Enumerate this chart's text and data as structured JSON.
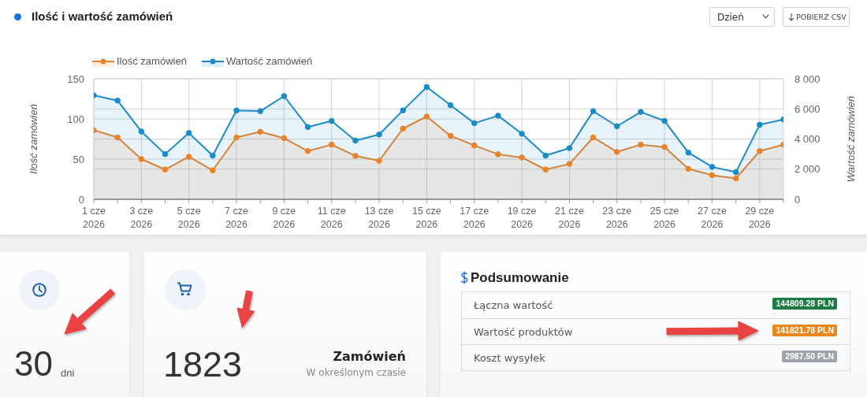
{
  "chart_data": [
    {
      "type": "area",
      "title": "Ilość i wartość zamówień",
      "ylabel": "Ilość zamówień",
      "y2label": "Wartość zamówień",
      "categories": [
        "1 cze 2026",
        null,
        "3 cze 2026",
        null,
        "5 cze 2026",
        null,
        "7 cze 2026",
        null,
        "9 cze 2026",
        null,
        "11 cze 2026",
        null,
        "13 cze 2026",
        null,
        "15 cze 2026",
        null,
        "17 cze 2026",
        null,
        "19 cze 2026",
        null,
        "21 cze 2026",
        null,
        "23 cze 2026",
        null,
        "25 cze 2026",
        null,
        "27 cze 2026",
        null,
        "29 cze 2026",
        null
      ],
      "series": [
        {
          "name": "Ilość zamówień",
          "color": "#e8832a",
          "values": [
            86,
            77,
            50,
            37,
            53,
            36,
            77,
            84,
            76,
            60,
            68,
            54,
            48,
            88,
            103,
            79,
            67,
            56,
            52,
            37,
            44,
            77,
            59,
            68,
            65,
            38,
            30,
            26,
            60,
            68
          ]
        },
        {
          "name": "Wartość zamówień",
          "color": "#1b8bc8",
          "axis": "y2",
          "values": [
            6900,
            6550,
            4500,
            3000,
            4400,
            2900,
            5900,
            5850,
            6850,
            4800,
            5200,
            3900,
            4300,
            5900,
            7450,
            6250,
            5050,
            5550,
            4350,
            2900,
            3400,
            5850,
            4850,
            5800,
            5200,
            3100,
            2150,
            1800,
            4950,
            5300
          ]
        }
      ],
      "ylim": [
        0,
        150
      ],
      "yticks": [
        0,
        50,
        100,
        150
      ],
      "y2lim": [
        0,
        8000
      ],
      "y2ticks": [
        0,
        {
          "value": 2000,
          "label": "2 000"
        },
        {
          "value": 4000,
          "label": "4 000"
        },
        {
          "value": 6000,
          "label": "6 000"
        },
        {
          "value": 8000,
          "label": "8 000"
        }
      ],
      "grid": true,
      "legend": "top left",
      "marker": "circle",
      "annotations": [
        "Dzień",
        "POBIERZ CSV"
      ]
    },
    {
      "type": "other",
      "annotations": [
        "30",
        "dni"
      ]
    },
    {
      "type": "other",
      "annotations": [
        "1823",
        "Zamówień",
        "W określonym czasie"
      ]
    },
    {
      "type": "other",
      "title": "Podsumowanie",
      "annotations": [
        "Łączna wartość",
        "144809.28 PLN",
        "Wartość produktów",
        "141821.78 PLN",
        "Koszt wysyłek",
        "2987.50 PLN"
      ]
    }
  ]
}
